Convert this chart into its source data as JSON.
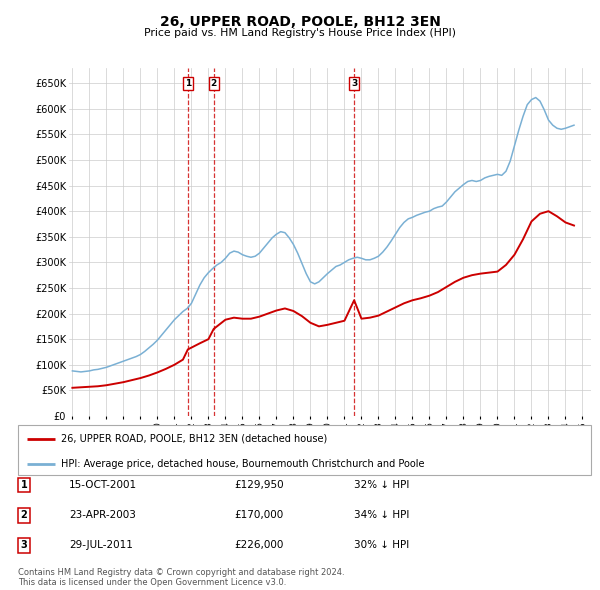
{
  "title": "26, UPPER ROAD, POOLE, BH12 3EN",
  "subtitle": "Price paid vs. HM Land Registry's House Price Index (HPI)",
  "ylabel_ticks": [
    "£0",
    "£50K",
    "£100K",
    "£150K",
    "£200K",
    "£250K",
    "£300K",
    "£350K",
    "£400K",
    "£450K",
    "£500K",
    "£550K",
    "£600K",
    "£650K"
  ],
  "ytick_values": [
    0,
    50000,
    100000,
    150000,
    200000,
    250000,
    300000,
    350000,
    400000,
    450000,
    500000,
    550000,
    600000,
    650000
  ],
  "ylim": [
    0,
    680000
  ],
  "xlim_start": 1994.8,
  "xlim_end": 2025.5,
  "background_color": "#ffffff",
  "grid_color": "#cccccc",
  "sale_color": "#cc0000",
  "hpi_color": "#7ab0d4",
  "sale_label": "26, UPPER ROAD, POOLE, BH12 3EN (detached house)",
  "hpi_label": "HPI: Average price, detached house, Bournemouth Christchurch and Poole",
  "transactions": [
    {
      "num": 1,
      "date": "15-OCT-2001",
      "price": "£129,950",
      "pct": "32% ↓ HPI",
      "year": 2001.79
    },
    {
      "num": 2,
      "date": "23-APR-2003",
      "price": "£170,000",
      "pct": "34% ↓ HPI",
      "year": 2003.31
    },
    {
      "num": 3,
      "date": "29-JUL-2011",
      "price": "£226,000",
      "pct": "30% ↓ HPI",
      "year": 2011.57
    }
  ],
  "footer": "Contains HM Land Registry data © Crown copyright and database right 2024.\nThis data is licensed under the Open Government Licence v3.0.",
  "hpi_data_x": [
    1995.0,
    1995.25,
    1995.5,
    1995.75,
    1996.0,
    1996.25,
    1996.5,
    1996.75,
    1997.0,
    1997.25,
    1997.5,
    1997.75,
    1998.0,
    1998.25,
    1998.5,
    1998.75,
    1999.0,
    1999.25,
    1999.5,
    1999.75,
    2000.0,
    2000.25,
    2000.5,
    2000.75,
    2001.0,
    2001.25,
    2001.5,
    2001.75,
    2002.0,
    2002.25,
    2002.5,
    2002.75,
    2003.0,
    2003.25,
    2003.5,
    2003.75,
    2004.0,
    2004.25,
    2004.5,
    2004.75,
    2005.0,
    2005.25,
    2005.5,
    2005.75,
    2006.0,
    2006.25,
    2006.5,
    2006.75,
    2007.0,
    2007.25,
    2007.5,
    2007.75,
    2008.0,
    2008.25,
    2008.5,
    2008.75,
    2009.0,
    2009.25,
    2009.5,
    2009.75,
    2010.0,
    2010.25,
    2010.5,
    2010.75,
    2011.0,
    2011.25,
    2011.5,
    2011.75,
    2012.0,
    2012.25,
    2012.5,
    2012.75,
    2013.0,
    2013.25,
    2013.5,
    2013.75,
    2014.0,
    2014.25,
    2014.5,
    2014.75,
    2015.0,
    2015.25,
    2015.5,
    2015.75,
    2016.0,
    2016.25,
    2016.5,
    2016.75,
    2017.0,
    2017.25,
    2017.5,
    2017.75,
    2018.0,
    2018.25,
    2018.5,
    2018.75,
    2019.0,
    2019.25,
    2019.5,
    2019.75,
    2020.0,
    2020.25,
    2020.5,
    2020.75,
    2021.0,
    2021.25,
    2021.5,
    2021.75,
    2022.0,
    2022.25,
    2022.5,
    2022.75,
    2023.0,
    2023.25,
    2023.5,
    2023.75,
    2024.0,
    2024.25,
    2024.5
  ],
  "hpi_data_y": [
    88000,
    87000,
    86000,
    87000,
    88000,
    90000,
    91000,
    93000,
    95000,
    98000,
    101000,
    104000,
    107000,
    110000,
    113000,
    116000,
    120000,
    126000,
    133000,
    140000,
    148000,
    158000,
    168000,
    178000,
    188000,
    196000,
    204000,
    210000,
    220000,
    238000,
    256000,
    270000,
    280000,
    288000,
    295000,
    300000,
    308000,
    318000,
    322000,
    320000,
    315000,
    312000,
    310000,
    312000,
    318000,
    328000,
    338000,
    348000,
    355000,
    360000,
    358000,
    348000,
    335000,
    318000,
    298000,
    278000,
    262000,
    258000,
    262000,
    270000,
    278000,
    285000,
    292000,
    295000,
    300000,
    305000,
    308000,
    310000,
    308000,
    305000,
    305000,
    308000,
    312000,
    320000,
    330000,
    342000,
    355000,
    368000,
    378000,
    385000,
    388000,
    392000,
    395000,
    398000,
    400000,
    405000,
    408000,
    410000,
    418000,
    428000,
    438000,
    445000,
    452000,
    458000,
    460000,
    458000,
    460000,
    465000,
    468000,
    470000,
    472000,
    470000,
    478000,
    498000,
    528000,
    558000,
    585000,
    608000,
    618000,
    622000,
    615000,
    598000,
    578000,
    568000,
    562000,
    560000,
    562000,
    565000,
    568000
  ],
  "sale_data_x": [
    1995.0,
    1995.5,
    1996.0,
    1996.5,
    1997.0,
    1997.5,
    1998.0,
    1998.5,
    1999.0,
    1999.5,
    2000.0,
    2000.5,
    2001.0,
    2001.5,
    2001.79,
    2002.5,
    2003.0,
    2003.31,
    2004.0,
    2004.5,
    2005.0,
    2005.5,
    2006.0,
    2006.5,
    2007.0,
    2007.5,
    2008.0,
    2008.5,
    2009.0,
    2009.5,
    2010.0,
    2010.5,
    2011.0,
    2011.57,
    2012.0,
    2012.5,
    2013.0,
    2013.5,
    2014.0,
    2014.5,
    2015.0,
    2015.5,
    2016.0,
    2016.5,
    2017.0,
    2017.5,
    2018.0,
    2018.5,
    2019.0,
    2019.5,
    2020.0,
    2020.5,
    2021.0,
    2021.5,
    2022.0,
    2022.5,
    2023.0,
    2023.5,
    2024.0,
    2024.5
  ],
  "sale_data_y": [
    55000,
    56000,
    57000,
    58000,
    60000,
    63000,
    66000,
    70000,
    74000,
    79000,
    85000,
    92000,
    100000,
    110000,
    129950,
    142000,
    150000,
    170000,
    188000,
    192000,
    190000,
    190000,
    194000,
    200000,
    206000,
    210000,
    205000,
    195000,
    182000,
    175000,
    178000,
    182000,
    186000,
    226000,
    190000,
    192000,
    196000,
    204000,
    212000,
    220000,
    226000,
    230000,
    235000,
    242000,
    252000,
    262000,
    270000,
    275000,
    278000,
    280000,
    282000,
    295000,
    315000,
    345000,
    380000,
    395000,
    400000,
    390000,
    378000,
    372000
  ]
}
